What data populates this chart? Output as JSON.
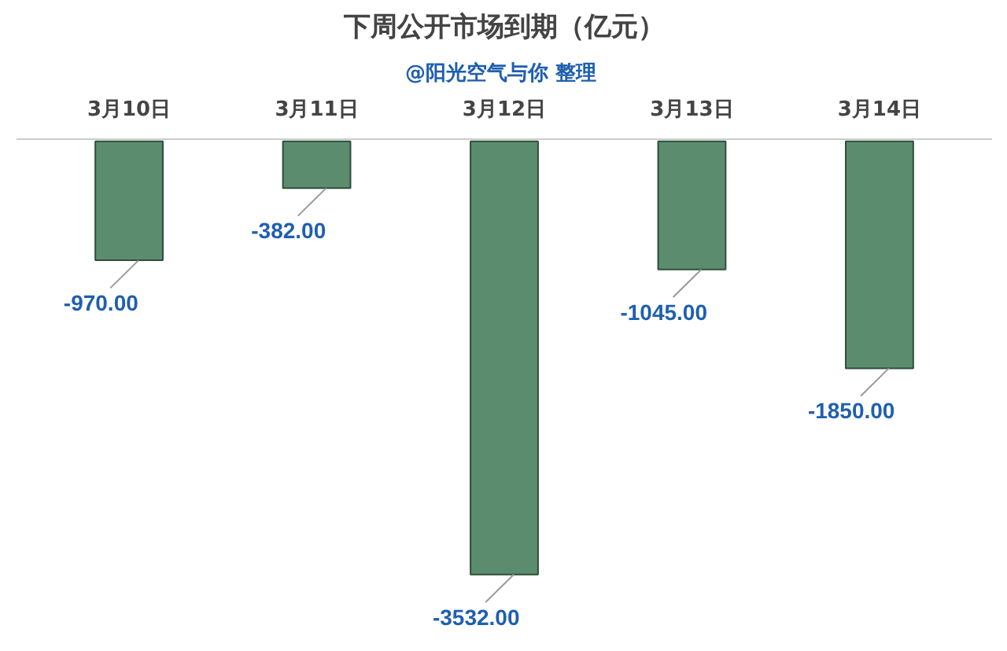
{
  "chart_data": {
    "type": "bar",
    "title": "下周公开市场到期（亿元）",
    "subtitle": "@阳光空气与你  整理",
    "categories": [
      "3月10日",
      "3月11日",
      "3月12日",
      "3月13日",
      "3月14日"
    ],
    "values": [
      -970,
      -382,
      -3532,
      -1045,
      -1850
    ],
    "value_labels": [
      "-970.00",
      "-382.00",
      "-3532.00",
      "-1045.00",
      "-1850.00"
    ],
    "color": "#5b8c6e",
    "grid": false
  }
}
